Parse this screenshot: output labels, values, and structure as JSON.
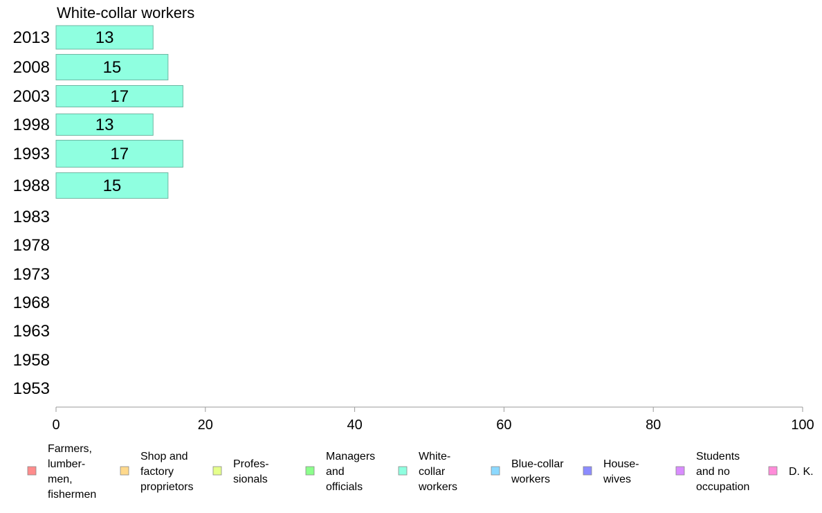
{
  "chart_data": {
    "type": "bar",
    "orientation": "horizontal",
    "title": "White-collar workers",
    "categories": [
      "2013",
      "2008",
      "2003",
      "1998",
      "1993",
      "1988",
      "1983",
      "1978",
      "1973",
      "1968",
      "1963",
      "1958",
      "1953"
    ],
    "values": [
      13,
      15,
      17,
      13,
      17,
      15,
      null,
      null,
      null,
      null,
      null,
      null,
      null
    ],
    "value_labels": [
      "13",
      "15",
      "17",
      "13",
      "17",
      "15",
      "",
      "",
      "",
      "",
      "",
      "",
      ""
    ],
    "bar_color": "#8fffe0",
    "bar_stroke": "#6fb7a3",
    "xlim": [
      0,
      100
    ],
    "xticks": [
      0,
      20,
      40,
      60,
      80,
      100
    ],
    "xtick_labels": [
      "0",
      "20",
      "40",
      "60",
      "80",
      "100"
    ],
    "grid": false,
    "legend_position": "bottom",
    "legend": [
      {
        "label_lines": [
          "Farmers,",
          "lumber-",
          "men,",
          "fishermen"
        ],
        "color": "#ff8c8c"
      },
      {
        "label_lines": [
          "Shop and",
          "factory",
          "proprietors"
        ],
        "color": "#ffd98c"
      },
      {
        "label_lines": [
          "Profes-",
          "sionals"
        ],
        "color": "#e5ff8c"
      },
      {
        "label_lines": [
          "Managers",
          "and",
          "officials"
        ],
        "color": "#8cff8c"
      },
      {
        "label_lines": [
          "White-",
          "collar",
          "workers"
        ],
        "color": "#8fffe0"
      },
      {
        "label_lines": [
          "Blue-collar",
          "workers"
        ],
        "color": "#8cd9ff"
      },
      {
        "label_lines": [
          "House-",
          "wives"
        ],
        "color": "#8c8cff"
      },
      {
        "label_lines": [
          "Students",
          "and no",
          "occupation"
        ],
        "color": "#d98cff"
      },
      {
        "label_lines": [
          "D. K."
        ],
        "color": "#ff8cd9"
      }
    ]
  }
}
